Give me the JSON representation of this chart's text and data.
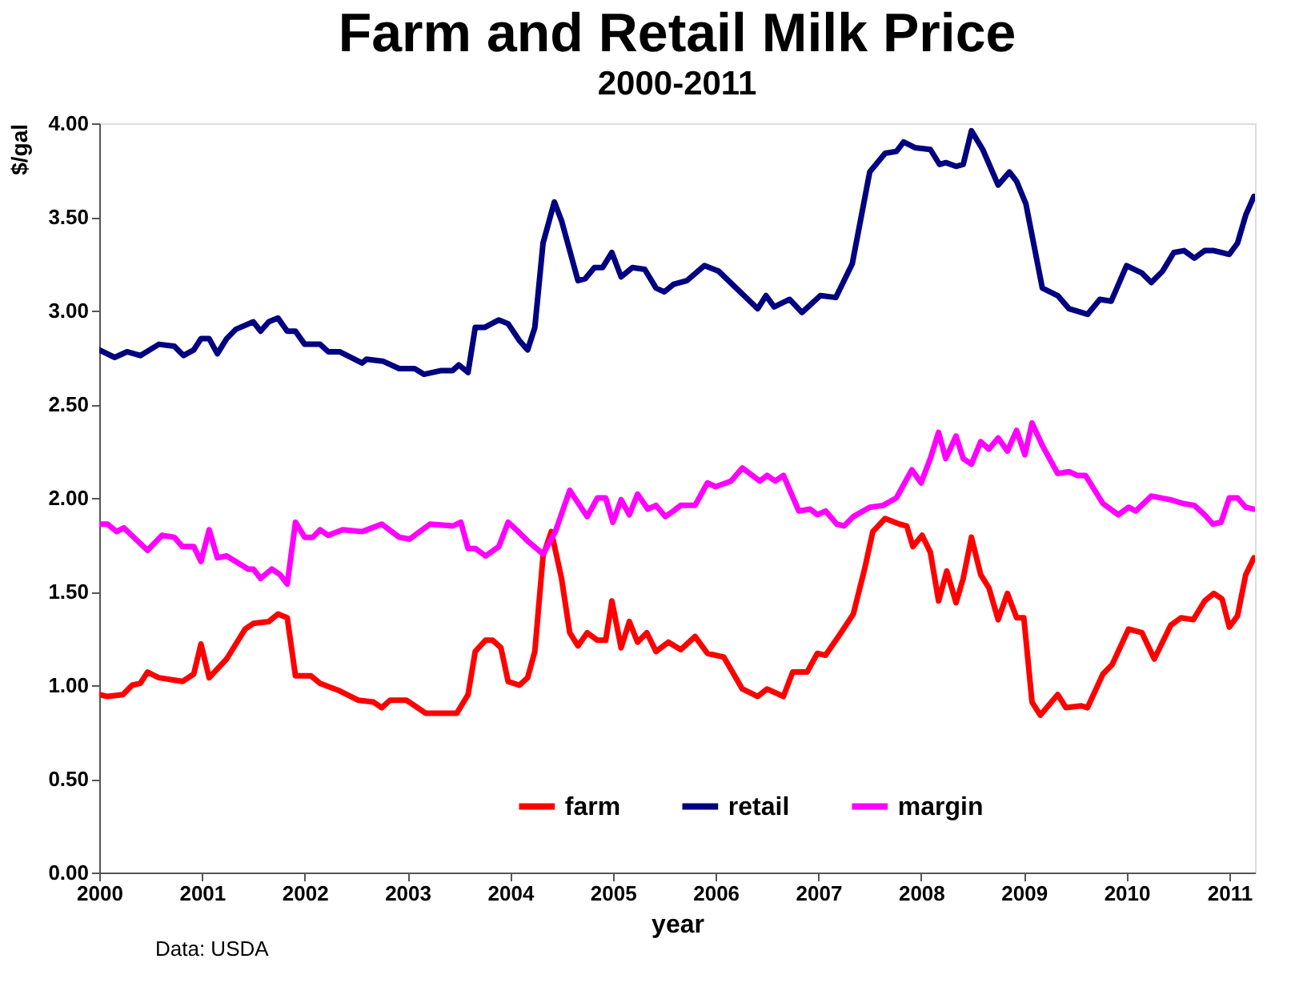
{
  "chart_data": {
    "type": "line",
    "title": "Farm and Retail Milk Price",
    "subtitle": "2000-2011",
    "xlabel": "year",
    "ylabel": "$/gal",
    "annotations": [
      "Data: USDA"
    ],
    "xlim": [
      2000,
      2011.25
    ],
    "xticks": [
      2000,
      2001,
      2002,
      2003,
      2004,
      2005,
      2006,
      2007,
      2008,
      2009,
      2010,
      2011
    ],
    "ylim": [
      0,
      4
    ],
    "yticks": [
      {
        "value": 0,
        "label": "0.00"
      },
      {
        "value": 0.5,
        "label": "0.50"
      },
      {
        "value": 1,
        "label": "1.00"
      },
      {
        "value": 1.5,
        "label": "1.50"
      },
      {
        "value": 2,
        "label": "2.00"
      },
      {
        "value": 2.5,
        "label": "2.50"
      },
      {
        "value": 3,
        "label": "3.00"
      },
      {
        "value": 3.5,
        "label": "3.50"
      },
      {
        "value": 4,
        "label": "4.00"
      }
    ],
    "grid": false,
    "legend": "bottom",
    "marker": "none",
    "line_style": "solid",
    "series": [
      {
        "name": "farm",
        "color": "#ff0000",
        "x": [
          2000.0,
          2000.08,
          2000.23,
          2000.32,
          2000.4,
          2000.47,
          2000.58,
          2000.81,
          2000.92,
          2000.99,
          2001.07,
          2001.24,
          2001.42,
          2001.5,
          2001.65,
          2001.74,
          2001.83,
          2001.91,
          2002.06,
          2002.15,
          2002.34,
          2002.52,
          2002.67,
          2002.75,
          2002.83,
          2002.99,
          2003.18,
          2003.36,
          2003.48,
          2003.59,
          2003.66,
          2003.76,
          2003.83,
          2003.91,
          2003.98,
          2004.09,
          2004.17,
          2004.24,
          2004.32,
          2004.4,
          2004.5,
          2004.58,
          2004.66,
          2004.75,
          2004.85,
          2004.93,
          2004.99,
          2005.08,
          2005.16,
          2005.24,
          2005.33,
          2005.42,
          2005.54,
          2005.66,
          2005.8,
          2005.92,
          2006.08,
          2006.26,
          2006.41,
          2006.5,
          2006.66,
          2006.75,
          2006.89,
          2006.99,
          2007.07,
          2007.22,
          2007.34,
          2007.45,
          2007.53,
          2007.65,
          2007.79,
          2007.86,
          2007.92,
          2008.01,
          2008.09,
          2008.17,
          2008.25,
          2008.34,
          2008.41,
          2008.49,
          2008.58,
          2008.66,
          2008.75,
          2008.84,
          2008.93,
          2009.0,
          2009.08,
          2009.16,
          2009.33,
          2009.41,
          2009.56,
          2009.62,
          2009.77,
          2009.86,
          2010.02,
          2010.15,
          2010.27,
          2010.43,
          2010.53,
          2010.65,
          2010.76,
          2010.85,
          2010.93,
          2011.0,
          2011.08,
          2011.16,
          2011.24
        ],
        "values": [
          0.95,
          0.94,
          0.95,
          1.0,
          1.01,
          1.07,
          1.04,
          1.02,
          1.06,
          1.22,
          1.04,
          1.14,
          1.3,
          1.33,
          1.34,
          1.38,
          1.36,
          1.05,
          1.05,
          1.01,
          0.97,
          0.92,
          0.91,
          0.88,
          0.92,
          0.92,
          0.85,
          0.85,
          0.85,
          0.95,
          1.18,
          1.24,
          1.24,
          1.2,
          1.02,
          1.0,
          1.04,
          1.18,
          1.69,
          1.82,
          1.57,
          1.28,
          1.21,
          1.28,
          1.24,
          1.24,
          1.45,
          1.2,
          1.34,
          1.23,
          1.28,
          1.18,
          1.23,
          1.19,
          1.26,
          1.17,
          1.15,
          0.98,
          0.94,
          0.98,
          0.94,
          1.07,
          1.07,
          1.17,
          1.16,
          1.28,
          1.38,
          1.62,
          1.82,
          1.89,
          1.86,
          1.85,
          1.74,
          1.8,
          1.71,
          1.45,
          1.61,
          1.44,
          1.57,
          1.79,
          1.59,
          1.52,
          1.35,
          1.49,
          1.36,
          1.36,
          0.91,
          0.84,
          0.95,
          0.88,
          0.89,
          0.88,
          1.06,
          1.11,
          1.3,
          1.28,
          1.14,
          1.32,
          1.36,
          1.35,
          1.45,
          1.49,
          1.46,
          1.31,
          1.37,
          1.59,
          1.68
        ]
      },
      {
        "name": "retail",
        "color": "#000080",
        "x": [
          2000.0,
          2000.15,
          2000.27,
          2000.4,
          2000.58,
          2000.73,
          2000.82,
          2000.92,
          2000.99,
          2001.07,
          2001.15,
          2001.24,
          2001.33,
          2001.5,
          2001.57,
          2001.65,
          2001.74,
          2001.83,
          2001.91,
          2002.0,
          2002.15,
          2002.23,
          2002.34,
          2002.56,
          2002.6,
          2002.76,
          2002.92,
          2003.07,
          2003.16,
          2003.33,
          2003.44,
          2003.5,
          2003.59,
          2003.66,
          2003.75,
          2003.89,
          2003.98,
          2004.09,
          2004.17,
          2004.24,
          2004.32,
          2004.43,
          2004.5,
          2004.66,
          2004.73,
          2004.82,
          2004.9,
          2004.99,
          2005.08,
          2005.19,
          2005.31,
          2005.42,
          2005.5,
          2005.59,
          2005.72,
          2005.89,
          2006.03,
          2006.41,
          2006.49,
          2006.57,
          2006.72,
          2006.84,
          2007.02,
          2007.17,
          2007.33,
          2007.5,
          2007.65,
          2007.76,
          2007.83,
          2007.94,
          2008.09,
          2008.18,
          2008.24,
          2008.34,
          2008.41,
          2008.49,
          2008.6,
          2008.75,
          2008.86,
          2008.93,
          2009.02,
          2009.18,
          2009.33,
          2009.44,
          2009.62,
          2009.74,
          2009.85,
          2010.0,
          2010.15,
          2010.24,
          2010.35,
          2010.46,
          2010.56,
          2010.66,
          2010.76,
          2010.85,
          2011.0,
          2011.08,
          2011.16,
          2011.24
        ],
        "values": [
          2.79,
          2.75,
          2.78,
          2.76,
          2.82,
          2.81,
          2.76,
          2.79,
          2.85,
          2.85,
          2.77,
          2.85,
          2.9,
          2.94,
          2.89,
          2.94,
          2.96,
          2.89,
          2.89,
          2.82,
          2.82,
          2.78,
          2.78,
          2.72,
          2.74,
          2.73,
          2.69,
          2.69,
          2.66,
          2.68,
          2.68,
          2.71,
          2.67,
          2.91,
          2.91,
          2.95,
          2.93,
          2.84,
          2.79,
          2.91,
          3.36,
          3.58,
          3.48,
          3.16,
          3.17,
          3.23,
          3.23,
          3.31,
          3.18,
          3.23,
          3.22,
          3.12,
          3.1,
          3.14,
          3.16,
          3.24,
          3.21,
          3.01,
          3.08,
          3.02,
          3.06,
          2.99,
          3.08,
          3.07,
          3.25,
          3.74,
          3.84,
          3.85,
          3.9,
          3.87,
          3.86,
          3.78,
          3.79,
          3.77,
          3.78,
          3.96,
          3.86,
          3.67,
          3.74,
          3.69,
          3.57,
          3.12,
          3.08,
          3.01,
          2.98,
          3.06,
          3.05,
          3.24,
          3.2,
          3.15,
          3.21,
          3.31,
          3.32,
          3.28,
          3.32,
          3.32,
          3.3,
          3.36,
          3.51,
          3.61
        ]
      },
      {
        "name": "margin",
        "color": "#ff00ff",
        "x": [
          2000.0,
          2000.08,
          2000.17,
          2000.24,
          2000.47,
          2000.61,
          2000.73,
          2000.81,
          2000.92,
          2000.99,
          2001.07,
          2001.15,
          2001.24,
          2001.45,
          2001.5,
          2001.57,
          2001.68,
          2001.76,
          2001.83,
          2001.91,
          2002.0,
          2002.08,
          2002.15,
          2002.23,
          2002.37,
          2002.56,
          2002.75,
          2002.92,
          2003.02,
          2003.22,
          2003.44,
          2003.52,
          2003.59,
          2003.66,
          2003.76,
          2003.89,
          2003.98,
          2004.06,
          2004.17,
          2004.32,
          2004.44,
          2004.58,
          2004.75,
          2004.85,
          2004.93,
          2005.0,
          2005.08,
          2005.16,
          2005.24,
          2005.34,
          2005.42,
          2005.51,
          2005.59,
          2005.66,
          2005.8,
          2005.92,
          2006.0,
          2006.15,
          2006.26,
          2006.43,
          2006.5,
          2006.58,
          2006.66,
          2006.81,
          2006.92,
          2006.99,
          2007.07,
          2007.18,
          2007.25,
          2007.34,
          2007.5,
          2007.63,
          2007.76,
          2007.91,
          2008.0,
          2008.09,
          2008.17,
          2008.24,
          2008.34,
          2008.41,
          2008.49,
          2008.58,
          2008.66,
          2008.75,
          2008.84,
          2008.93,
          2009.01,
          2009.08,
          2009.18,
          2009.33,
          2009.44,
          2009.52,
          2009.6,
          2009.77,
          2009.92,
          2010.02,
          2010.09,
          2010.24,
          2010.43,
          2010.55,
          2010.66,
          2010.76,
          2010.84,
          2010.92,
          2011.0,
          2011.08,
          2011.16,
          2011.24
        ],
        "values": [
          1.86,
          1.86,
          1.82,
          1.84,
          1.72,
          1.8,
          1.79,
          1.74,
          1.74,
          1.66,
          1.83,
          1.68,
          1.69,
          1.62,
          1.62,
          1.57,
          1.62,
          1.59,
          1.54,
          1.87,
          1.79,
          1.79,
          1.83,
          1.8,
          1.83,
          1.82,
          1.86,
          1.79,
          1.78,
          1.86,
          1.85,
          1.87,
          1.73,
          1.73,
          1.69,
          1.74,
          1.87,
          1.83,
          1.77,
          1.7,
          1.82,
          2.04,
          1.9,
          2.0,
          2.0,
          1.87,
          1.99,
          1.91,
          2.02,
          1.94,
          1.96,
          1.9,
          1.93,
          1.96,
          1.96,
          2.08,
          2.06,
          2.09,
          2.16,
          2.09,
          2.12,
          2.09,
          2.12,
          1.93,
          1.94,
          1.91,
          1.93,
          1.86,
          1.85,
          1.9,
          1.95,
          1.96,
          2.0,
          2.15,
          2.08,
          2.21,
          2.35,
          2.21,
          2.33,
          2.21,
          2.18,
          2.3,
          2.26,
          2.32,
          2.25,
          2.36,
          2.23,
          2.4,
          2.28,
          2.13,
          2.14,
          2.12,
          2.12,
          1.97,
          1.91,
          1.95,
          1.93,
          2.01,
          1.99,
          1.97,
          1.96,
          1.91,
          1.86,
          1.87,
          2.0,
          2.0,
          1.95,
          1.94
        ]
      }
    ]
  }
}
